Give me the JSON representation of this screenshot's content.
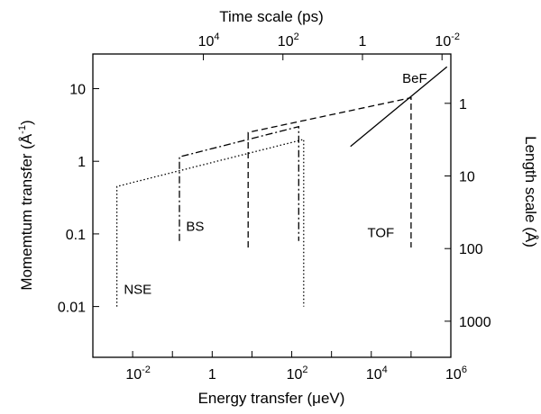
{
  "chart_data": {
    "type": "line",
    "x_axis": {
      "label": "Energy transfer (μeV)",
      "scale": "log",
      "range": [
        0.001,
        1000000
      ],
      "tick_labels": [
        {
          "value": 0.01,
          "base": "10",
          "exp": "-2"
        },
        {
          "value": 1,
          "base": "1",
          "exp": ""
        },
        {
          "value": 100,
          "base": "10",
          "exp": "2"
        },
        {
          "value": 10000,
          "base": "10",
          "exp": "4"
        },
        {
          "value": 1000000,
          "base": "10",
          "exp": "6"
        }
      ]
    },
    "y_axis": {
      "label": "Momemtum transfer (Å",
      "label_exp": "-1",
      "label_end": ")",
      "scale": "log",
      "range": [
        0.002,
        30
      ],
      "tick_labels": [
        {
          "value": 0.01,
          "text": "0.01"
        },
        {
          "value": 0.1,
          "text": "0.1"
        },
        {
          "value": 1,
          "text": "1"
        },
        {
          "value": 10,
          "text": "10"
        }
      ]
    },
    "top_axis": {
      "label": "Time scale (ps)",
      "tick_labels": [
        {
          "energy": 0.6,
          "base": "10",
          "exp": "4"
        },
        {
          "energy": 60,
          "base": "10",
          "exp": "2"
        },
        {
          "energy": 6000,
          "base": "1",
          "exp": ""
        },
        {
          "energy": 600000,
          "base": "10",
          "exp": "-2"
        }
      ]
    },
    "right_axis": {
      "label": "Length scale (Å)",
      "tick_labels": [
        {
          "q": 6.28,
          "text": "1"
        },
        {
          "q": 0.628,
          "text": "10"
        },
        {
          "q": 0.0628,
          "text": "100"
        },
        {
          "q": 0.00628,
          "text": "1000"
        }
      ]
    },
    "regions": [
      {
        "name": "NSE",
        "style": "dotted",
        "points": [
          [
            0.004,
            0.01
          ],
          [
            0.004,
            0.45
          ],
          [
            200,
            2.0
          ],
          [
            200,
            0.01
          ]
        ],
        "label_at": [
          0.006,
          0.015
        ]
      },
      {
        "name": "BS",
        "style": "dashdot",
        "points": [
          [
            0.15,
            0.08
          ],
          [
            0.15,
            1.15
          ],
          [
            150,
            3.0
          ],
          [
            150,
            0.08
          ]
        ],
        "label_at": [
          0.22,
          0.11
        ]
      },
      {
        "name": "TOF",
        "style": "dashed",
        "points": [
          [
            8,
            0.065
          ],
          [
            8,
            2.5
          ],
          [
            100000,
            7.5
          ],
          [
            100000,
            0.065
          ]
        ],
        "label_at": [
          8000,
          0.09
        ]
      },
      {
        "name": "BeF",
        "style": "solid",
        "points": [
          [
            3000,
            1.6
          ],
          [
            800000,
            20
          ]
        ],
        "label_at": [
          60000,
          12
        ]
      }
    ]
  }
}
